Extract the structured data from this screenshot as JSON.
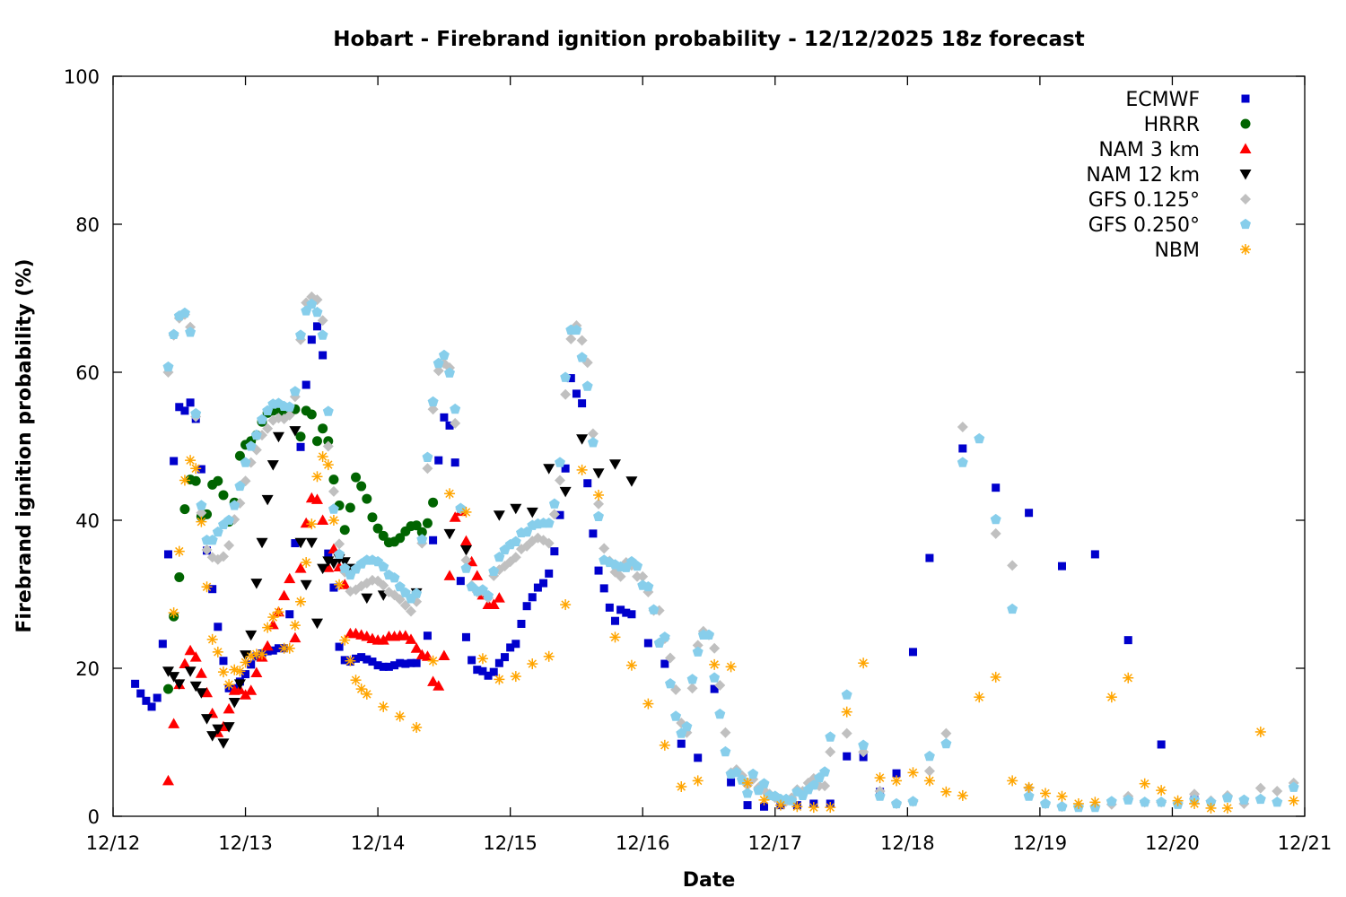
{
  "chart_data": {
    "type": "scatter",
    "title": "Hobart - Firebrand ignition probability - 12/12/2025 18z forecast",
    "xlabel": "Date",
    "ylabel": "Firebrand ignition probability (%)",
    "x_units": "hours since 12/12 00z",
    "xlim": [
      0,
      216
    ],
    "ylim": [
      0,
      100
    ],
    "x_ticks": [
      {
        "hour": 0,
        "label": "12/12"
      },
      {
        "hour": 24,
        "label": "12/13"
      },
      {
        "hour": 48,
        "label": "12/14"
      },
      {
        "hour": 72,
        "label": "12/15"
      },
      {
        "hour": 96,
        "label": "12/16"
      },
      {
        "hour": 120,
        "label": "12/17"
      },
      {
        "hour": 144,
        "label": "12/18"
      },
      {
        "hour": 168,
        "label": "12/19"
      },
      {
        "hour": 192,
        "label": "12/20"
      },
      {
        "hour": 216,
        "label": "12/21"
      }
    ],
    "y_ticks": [
      {
        "value": 0,
        "label": "0"
      },
      {
        "value": 20,
        "label": "20"
      },
      {
        "value": 40,
        "label": "40"
      },
      {
        "value": 60,
        "label": "60"
      },
      {
        "value": 80,
        "label": "80"
      },
      {
        "value": 100,
        "label": "100"
      }
    ],
    "grid": false,
    "legend_position": "top-right",
    "series": [
      {
        "name": "ECMWF",
        "marker": "square",
        "color": "#0000cc",
        "segments": [
          {
            "start": 4,
            "step": 1,
            "values": [
              17.9,
              16.6,
              15.6,
              14.8,
              16.0,
              23.3,
              35.4,
              48.0,
              55.3,
              54.8,
              55.9,
              53.7,
              46.9,
              35.9,
              30.7,
              25.6,
              21.0,
              17.3,
              17.3,
              18.2,
              19.2,
              20.5,
              21.6,
              22.0,
              22.3,
              22.4,
              22.7,
              22.7,
              27.3,
              36.9,
              49.9,
              58.3,
              64.4,
              66.2,
              62.3,
              35.5,
              30.9,
              22.9,
              21.1,
              20.9,
              21.3,
              21.5,
              21.2,
              20.9,
              20.4,
              20.2,
              20.2,
              20.4,
              20.7,
              20.6,
              20.7,
              20.7
            ]
          },
          {
            "start": 57,
            "step": 1,
            "values": [
              24.4,
              37.3,
              48.1,
              53.9,
              52.8,
              47.8,
              31.8,
              24.2,
              21.1,
              19.8,
              19.6,
              19.0,
              19.5,
              20.7,
              21.5,
              22.8,
              23.3,
              26.0,
              28.4,
              29.6,
              30.9,
              31.5,
              32.8,
              35.8,
              40.7,
              47.0,
              59.2,
              57.1,
              55.8,
              45.0,
              38.2,
              33.2,
              30.8,
              28.2,
              26.4,
              27.9,
              27.5,
              27.3
            ]
          },
          {
            "start": 97,
            "step": 3,
            "values": [
              23.4,
              20.6,
              9.8,
              7.9,
              17.2,
              4.6,
              1.5,
              1.3,
              1.5,
              1.5,
              1.7,
              1.7,
              8.1,
              8.0,
              3.3,
              5.8,
              22.2,
              34.9
            ]
          },
          {
            "start": 154,
            "step": 6,
            "values": [
              49.7,
              44.4,
              41.0,
              33.8,
              35.4,
              23.8,
              9.7,
              2.2
            ]
          }
        ]
      },
      {
        "name": "HRRR",
        "marker": "circle",
        "color": "#006400",
        "segments": [
          {
            "start": 10,
            "step": 1,
            "values": [
              17.2,
              27.0,
              32.3,
              41.5,
              45.5,
              45.3,
              40.5,
              40.8,
              44.8,
              45.3,
              43.4,
              39.8,
              42.4,
              48.7,
              50.2,
              50.7,
              51.5,
              53.3,
              54.5,
              54.8,
              55.0,
              54.5,
              55.0,
              55.0,
              51.3,
              54.8,
              54.3,
              50.7,
              52.4,
              50.7,
              45.5,
              42.0,
              38.7,
              41.7,
              45.8,
              44.6,
              42.9,
              40.4,
              38.9,
              37.9,
              37.0,
              37.1,
              37.6,
              38.5,
              39.2,
              39.3,
              38.4,
              39.6,
              42.4
            ]
          }
        ]
      },
      {
        "name": "NAM 3 km",
        "marker": "triangle-up",
        "color": "#ff0000",
        "segments": [
          {
            "start": 10,
            "step": 1,
            "values": [
              4.8,
              12.5,
              17.8,
              20.6,
              22.4,
              21.5,
              19.3,
              16.7,
              13.9,
              11.3,
              12.1,
              14.5,
              17.0,
              17.1,
              16.4,
              17.0,
              19.4,
              21.5,
              23.0,
              25.9,
              27.6,
              29.8,
              32.1,
              24.1,
              33.5,
              39.6,
              43.0,
              42.8,
              40.0,
              33.6,
              36.1,
              33.7,
              31.3,
              24.7,
              24.7,
              24.5,
              24.3,
              24.0,
              23.8,
              23.8,
              24.3,
              24.3,
              24.4,
              24.4,
              23.9,
              22.7,
              21.8,
              21.6,
              18.2,
              17.6,
              21.7,
              32.5,
              40.4,
              41.2,
              37.2,
              34.4,
              32.5,
              29.9,
              28.6,
              28.6,
              29.5
            ]
          }
        ]
      },
      {
        "name": "NAM 12 km",
        "marker": "triangle-down",
        "color": "#000000",
        "segments": [
          {
            "start": 10,
            "step": 1,
            "values": [
              19.6,
              18.9,
              17.9
            ]
          },
          {
            "start": 14,
            "step": 1,
            "values": [
              19.6,
              17.6,
              16.7,
              13.2,
              10.9,
              11.8,
              9.9,
              12.1,
              15.4,
              17.9,
              21.8,
              24.5,
              31.5,
              37.0,
              42.8,
              47.5,
              51.3
            ]
          },
          {
            "start": 33,
            "step": 1,
            "values": [
              52.1,
              37.0,
              31.3,
              37.0,
              26.1,
              33.5,
              34.5,
              34.2,
              34.8,
              34.4,
              33.5
            ]
          },
          {
            "start": 46,
            "step": 3,
            "values": [
              29.5,
              29.9
            ]
          },
          {
            "start": 55,
            "step": 3,
            "values": [
              30.2
            ]
          },
          {
            "start": 61,
            "step": 3,
            "values": [
              38.2,
              36.0
            ]
          },
          {
            "start": 70,
            "step": 3,
            "values": [
              40.7,
              41.6,
              41.1,
              47.0,
              43.9,
              51.0,
              46.4,
              47.6,
              45.3
            ]
          }
        ]
      },
      {
        "name": "GFS 0.125°",
        "marker": "diamond",
        "color": "#c0c0c0",
        "segments": [
          {
            "start": 10,
            "step": 1,
            "values": [
              60.0,
              65.0,
              67.3,
              67.8,
              66.1,
              54.0,
              41.0,
              36.0,
              35.0,
              34.7,
              35.1,
              36.6,
              40.1,
              42.3,
              45.3,
              47.8,
              49.5,
              51.5,
              52.4,
              53.5,
              53.8,
              53.7,
              54.2,
              56.7,
              64.4,
              69.4,
              70.2,
              69.8,
              67.0,
              50.0,
              43.9,
              36.8,
              33.0,
              30.4,
              30.6,
              31.1,
              31.5,
              31.9,
              31.8,
              31.2,
              30.3,
              29.9,
              29.3,
              28.5,
              27.7,
              29.0,
              36.9,
              47.0,
              55.0,
              60.2,
              61.2,
              60.6,
              53.1,
              41.5,
              34.6,
              31.2,
              30.3,
              30.4,
              29.5,
              32.5,
              33.3,
              33.8,
              34.4,
              35.0,
              36.1,
              36.5,
              37.2,
              37.6,
              37.3,
              36.9,
              40.8,
              45.4,
              57.0,
              64.5,
              66.3,
              64.3,
              61.3,
              51.7,
              42.2,
              36.2,
              34.5,
              33.0,
              32.4,
              34.3,
              33.9,
              32.4,
              32.4,
              30.3,
              27.8,
              27.8,
              24.0,
              21.4,
              17.1,
              12.6,
              11.3,
              17.3,
              23.1,
              25.0,
              24.5,
              22.7,
              17.7,
              11.3,
              5.9,
              6.3,
              5.5,
              4.2,
              5.0,
              3.9,
              3.5,
              3.0,
              2.5,
              2.3,
              2.0,
              2.5,
              3.6,
              3.4,
              4.5,
              5.1,
              4.1,
              4.1,
              8.7
            ]
          },
          {
            "start": 133,
            "step": 3,
            "values": [
              11.2,
              8.7,
              3.4,
              1.7,
              2.0,
              6.1,
              11.2,
              52.6
            ]
          },
          {
            "start": 160,
            "step": 3,
            "values": [
              38.2,
              33.9,
              3.8,
              1.7,
              1.3,
              1.4,
              1.4,
              1.6,
              2.7,
              1.9,
              1.9,
              1.8,
              3.0,
              2.1,
              2.8,
              1.7,
              3.8,
              3.4,
              4.5
            ]
          }
        ]
      },
      {
        "name": "GFS 0.250°",
        "marker": "pentagon",
        "color": "#87ceeb",
        "segments": [
          {
            "start": 10,
            "step": 1,
            "values": [
              60.7,
              65.1,
              67.6,
              68.0,
              65.4,
              54.4,
              42.0,
              37.3,
              37.3,
              38.4,
              39.4,
              40.0,
              42.0,
              44.6,
              47.8,
              50.0,
              51.5,
              53.6,
              54.8,
              55.7,
              55.8,
              55.4,
              55.3,
              57.4,
              65.0,
              68.3,
              69.2,
              68.1,
              65.0,
              54.7,
              41.5,
              35.4,
              33.5,
              32.6,
              33.4,
              34.1,
              34.6,
              34.6,
              34.4,
              33.7,
              32.6,
              32.2,
              31.0,
              30.2,
              29.4,
              30.1,
              37.4,
              48.5,
              56.0,
              61.2,
              62.3,
              59.9,
              55.0,
              41.6,
              33.5,
              31.0,
              30.4,
              30.6,
              29.8,
              33.1,
              35.0,
              36.0,
              36.7,
              37.1,
              38.3,
              38.4,
              39.3,
              39.5,
              39.6,
              39.6,
              42.2,
              47.8,
              59.3,
              65.7,
              65.7,
              62.0,
              58.1,
              50.5,
              40.5,
              34.6,
              34.3,
              34.0,
              33.7,
              33.6,
              34.4,
              33.8,
              31.2,
              31.0,
              27.9,
              23.4,
              24.2,
              17.9,
              13.5,
              11.2,
              12.1,
              18.5,
              22.2,
              24.5,
              24.5,
              18.7,
              13.8,
              8.7,
              5.7,
              5.9,
              4.9,
              3.1,
              5.7,
              3.5,
              4.4,
              2.8,
              2.7,
              2.3,
              2.3,
              2.1,
              3.3,
              2.8,
              3.6,
              4.2,
              5.2,
              6.0,
              10.7
            ]
          },
          {
            "start": 133,
            "step": 3,
            "values": [
              16.4,
              9.6,
              2.7,
              1.7,
              2.0,
              8.1,
              9.8,
              47.8,
              51.0,
              40.1,
              28.0,
              2.7,
              1.7,
              1.3,
              1.2,
              1.2,
              2.0,
              2.2,
              1.9,
              1.9,
              1.6,
              2.2,
              1.9,
              2.5,
              2.2,
              2.3,
              1.9,
              3.9
            ]
          }
        ]
      },
      {
        "name": "NBM",
        "marker": "asterisk",
        "color": "#ffa500",
        "segments": [
          {
            "start": 11,
            "step": 1,
            "values": [
              27.5,
              35.8,
              45.4,
              48.1,
              47.0,
              39.8,
              31.0,
              23.9,
              22.2,
              19.5,
              17.8,
              19.8,
              19.6,
              20.8,
              21.6,
              21.9,
              21.9,
              25.5,
              26.9,
              27.6,
              22.7,
              22.7,
              25.8,
              29.0,
              34.3,
              39.5,
              45.9,
              48.6,
              47.5,
              40.0,
              31.3,
              23.8,
              21.0,
              18.4,
              17.2,
              16.5
            ]
          },
          {
            "start": 49,
            "step": 3,
            "values": [
              14.8,
              13.5,
              12.0,
              21.0,
              43.6,
              41.1,
              21.3,
              18.5,
              18.9,
              20.6,
              21.6,
              28.6,
              46.8,
              43.4,
              24.2,
              20.4,
              15.2,
              9.6,
              4.0,
              4.8,
              20.5,
              20.2,
              4.5,
              2.2,
              1.5,
              1.3,
              1.2,
              1.2,
              14.1,
              20.7,
              5.2,
              4.8,
              5.9,
              4.8,
              3.3,
              2.8,
              16.1,
              18.8,
              4.8,
              3.9,
              3.1,
              2.7,
              1.7,
              1.9,
              16.1,
              18.7,
              4.4,
              3.5,
              2.1,
              1.7,
              1.1,
              1.1
            ]
          },
          {
            "start": 208,
            "step": 6,
            "values": [
              11.4,
              2.1
            ]
          }
        ]
      }
    ]
  }
}
